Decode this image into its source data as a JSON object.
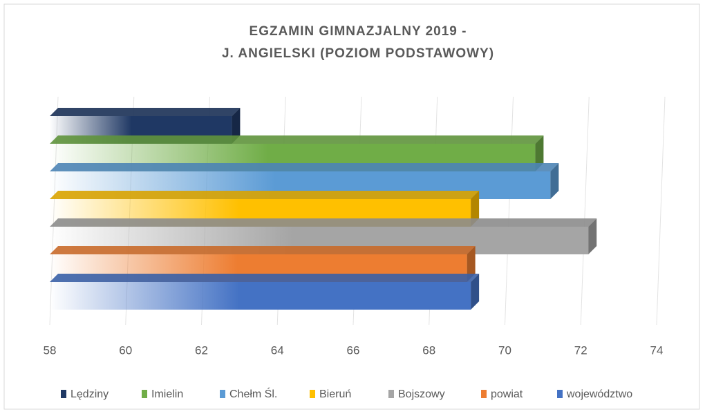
{
  "chart_data": {
    "type": "bar",
    "orientation": "horizontal",
    "title": [
      "EGZAMIN GIMNAZJALNY 2019 -",
      "J. ANGIELSKI (POZIOM PODSTAWOWY)"
    ],
    "series": [
      {
        "name": "Lędziny",
        "color": "#1f3864",
        "values": [
          62.8
        ]
      },
      {
        "name": "Imielin",
        "color": "#70ad47",
        "values": [
          70.8
        ]
      },
      {
        "name": "Chełm Śl.",
        "color": "#5b9bd5",
        "values": [
          71.2
        ]
      },
      {
        "name": "Bieruń",
        "color": "#ffc000",
        "values": [
          69.1
        ]
      },
      {
        "name": "Bojszowy",
        "color": "#a5a5a5",
        "values": [
          72.2
        ]
      },
      {
        "name": "powiat",
        "color": "#ed7d31",
        "values": [
          69.0
        ]
      },
      {
        "name": "województwo",
        "color": "#4472c4",
        "values": [
          69.1
        ]
      }
    ],
    "xlim": [
      58,
      74
    ],
    "xticks": [
      58,
      60,
      62,
      64,
      66,
      68,
      70,
      72,
      74
    ],
    "grid": true,
    "legend": "bottom"
  }
}
